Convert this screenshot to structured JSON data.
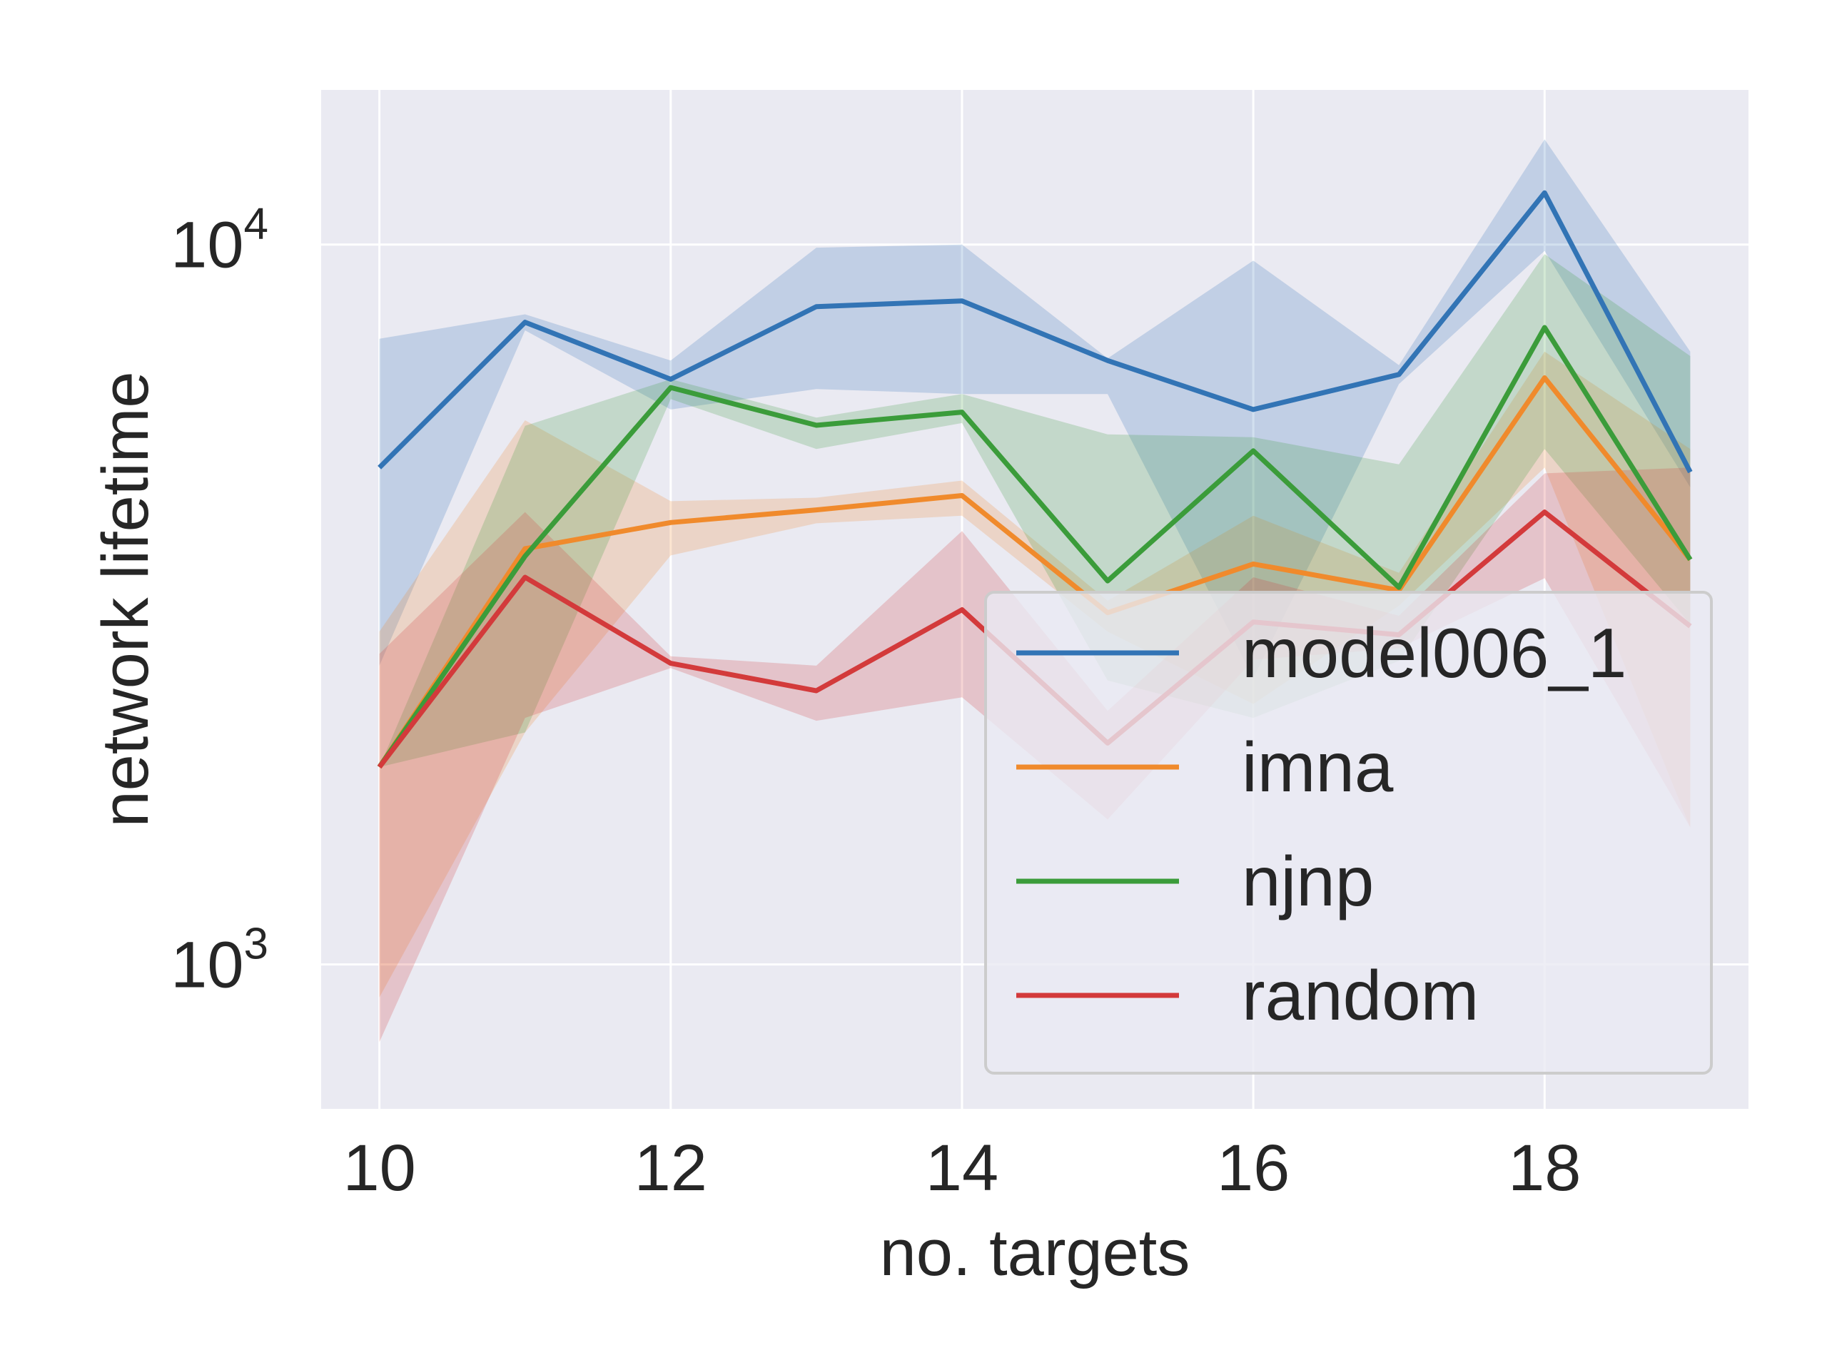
{
  "chart_data": {
    "type": "line",
    "xlabel": "no. targets",
    "ylabel": "network lifetime",
    "xlim": [
      9.6,
      19.4
    ],
    "ylim": [
      630,
      16400
    ],
    "yscale": "log",
    "xticks": [
      10,
      12,
      14,
      16,
      18
    ],
    "xtick_labels": [
      "10",
      "12",
      "14",
      "16",
      "18"
    ],
    "yticks": [
      {
        "value": 1000,
        "base": "10",
        "exp": "3"
      },
      {
        "value": 10000,
        "base": "10",
        "exp": "4"
      }
    ],
    "grid": true,
    "legend_position": "lower-right",
    "x": [
      10,
      11,
      12,
      13,
      14,
      15,
      16,
      17,
      18,
      19
    ],
    "series": [
      {
        "name": "model006_1",
        "color": "#3274b5",
        "values": [
          4900,
          7800,
          6500,
          8200,
          8350,
          6900,
          5900,
          6600,
          11800,
          4830
        ],
        "lower": [
          2600,
          7600,
          5900,
          6300,
          6200,
          6200,
          2500,
          6400,
          9800,
          4600
        ],
        "upper": [
          7400,
          8000,
          6900,
          9900,
          10000,
          6950,
          9500,
          6800,
          14000,
          7100
        ]
      },
      {
        "name": "imna",
        "color": "#f08a2c",
        "values": [
          1880,
          3780,
          4110,
          4280,
          4480,
          3080,
          3600,
          3310,
          6530,
          3650
        ],
        "lower": [
          900,
          2100,
          3700,
          4100,
          4200,
          2900,
          2300,
          3150,
          4900,
          1550
        ],
        "upper": [
          2900,
          5700,
          4400,
          4450,
          4700,
          3200,
          4200,
          3500,
          7100,
          5200
        ]
      },
      {
        "name": "njnp",
        "color": "#3b9c3a",
        "values": [
          1880,
          3690,
          6330,
          5610,
          5850,
          3410,
          5170,
          3340,
          7670,
          3650
        ],
        "lower": [
          1880,
          2100,
          6100,
          5200,
          5650,
          2480,
          2200,
          2640,
          5200,
          2970
        ],
        "upper": [
          1880,
          5600,
          6500,
          5750,
          6200,
          5450,
          5400,
          4950,
          9700,
          7000
        ]
      },
      {
        "name": "random",
        "color": "#d33a3b",
        "values": [
          1880,
          3450,
          2620,
          2400,
          3110,
          2030,
          2990,
          2870,
          4250,
          2950
        ],
        "lower": [
          780,
          2200,
          2580,
          2180,
          2350,
          1590,
          2650,
          2750,
          3440,
          1550
        ],
        "upper": [
          2700,
          4250,
          2680,
          2600,
          4000,
          2250,
          3450,
          3050,
          4810,
          4900
        ]
      }
    ]
  }
}
